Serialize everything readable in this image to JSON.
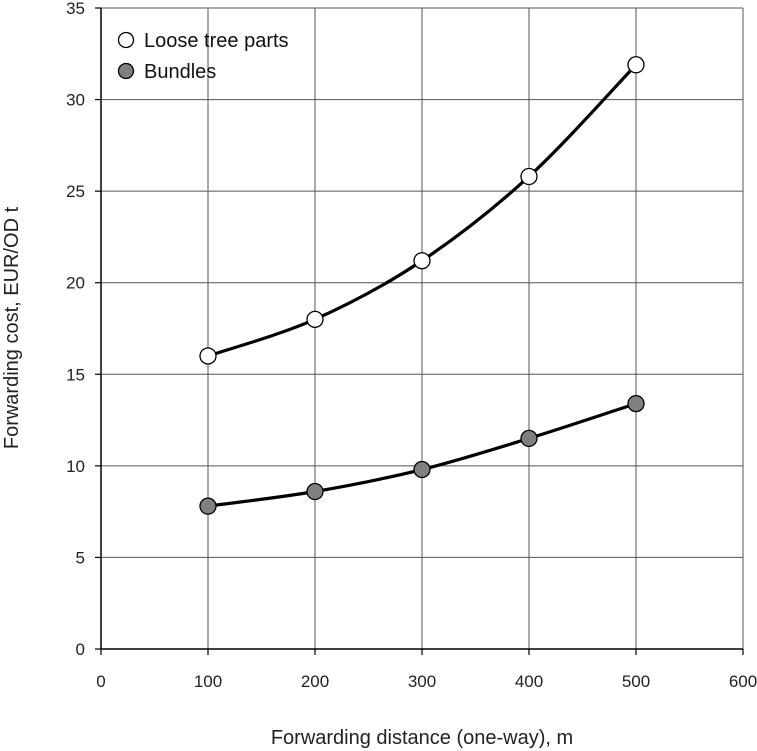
{
  "chart_data": {
    "type": "line",
    "xlabel": "Forwarding distance (one-way), m",
    "ylabel": "Forwarding cost, EUR/OD t",
    "xlim": [
      0,
      600
    ],
    "ylim": [
      0,
      35
    ],
    "xticks": [
      "0",
      "100",
      "200",
      "300",
      "400",
      "500",
      "600"
    ],
    "yticks": [
      "0",
      "5",
      "10",
      "15",
      "20",
      "25",
      "30",
      "35"
    ],
    "grid": true,
    "legend_position": "top-left",
    "x": [
      100,
      200,
      300,
      400,
      500
    ],
    "series": [
      {
        "name": "Loose tree parts",
        "values": [
          16.0,
          18.0,
          21.2,
          25.8,
          31.9
        ],
        "marker_fill": "#ffffff"
      },
      {
        "name": "Bundles",
        "values": [
          7.8,
          8.6,
          9.8,
          11.5,
          13.4
        ],
        "marker_fill": "#808080"
      }
    ]
  }
}
